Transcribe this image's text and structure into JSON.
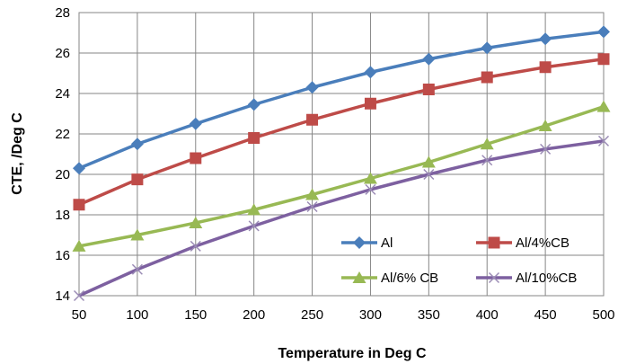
{
  "chart_data": {
    "type": "line",
    "xlabel": "Temperature in Deg C",
    "ylabel": "CTE, /Deg C",
    "x": [
      50,
      100,
      150,
      200,
      250,
      300,
      350,
      400,
      450,
      500
    ],
    "xlim": [
      50,
      500
    ],
    "ylim": [
      14,
      28
    ],
    "yticks": [
      14,
      16,
      18,
      20,
      22,
      24,
      26,
      28
    ],
    "grid": true,
    "legend_position": "inside-bottom-right",
    "series": [
      {
        "name": "Al",
        "color": "#4a7ebb",
        "marker": "diamond",
        "values": [
          20.3,
          21.5,
          22.5,
          23.45,
          24.3,
          25.05,
          25.7,
          26.25,
          26.7,
          27.05
        ]
      },
      {
        "name": "Al/4%CB",
        "color": "#be4b48",
        "marker": "square",
        "values": [
          18.5,
          19.75,
          20.8,
          21.8,
          22.7,
          23.5,
          24.2,
          24.8,
          25.3,
          25.7
        ]
      },
      {
        "name": "Al/6% CB",
        "color": "#98b954",
        "marker": "triangle",
        "values": [
          16.45,
          17.0,
          17.6,
          18.25,
          19.0,
          19.8,
          20.6,
          21.5,
          22.4,
          23.35
        ]
      },
      {
        "name": "Al/10%CB",
        "color": "#7d60a0",
        "marker": "x",
        "values": [
          14.0,
          15.3,
          16.45,
          17.45,
          18.4,
          19.25,
          20.0,
          20.7,
          21.25,
          21.65
        ]
      }
    ]
  }
}
